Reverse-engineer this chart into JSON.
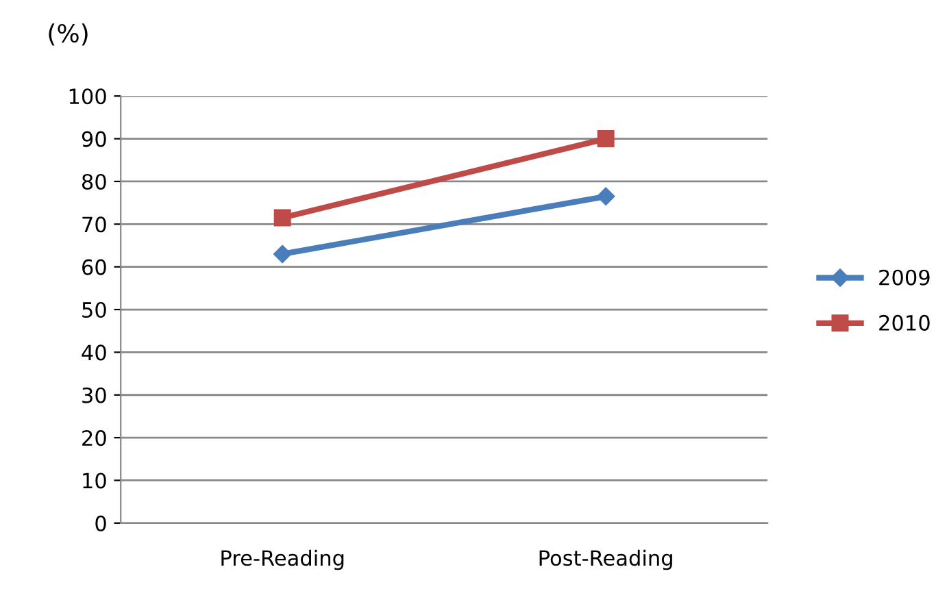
{
  "chart_data": {
    "type": "line",
    "ylabel": "(%)",
    "categories": [
      "Pre-Reading",
      "Post-Reading"
    ],
    "series": [
      {
        "name": "2009",
        "color": "#4a7ebb",
        "marker": "diamond",
        "values": [
          63,
          76.5
        ]
      },
      {
        "name": "2010",
        "color": "#be4b48",
        "marker": "square",
        "values": [
          71.5,
          90
        ]
      }
    ],
    "ylim": [
      0,
      100
    ],
    "yticks": [
      0,
      10,
      20,
      30,
      40,
      50,
      60,
      70,
      80,
      90,
      100
    ],
    "grid": "y",
    "legend": "right"
  }
}
